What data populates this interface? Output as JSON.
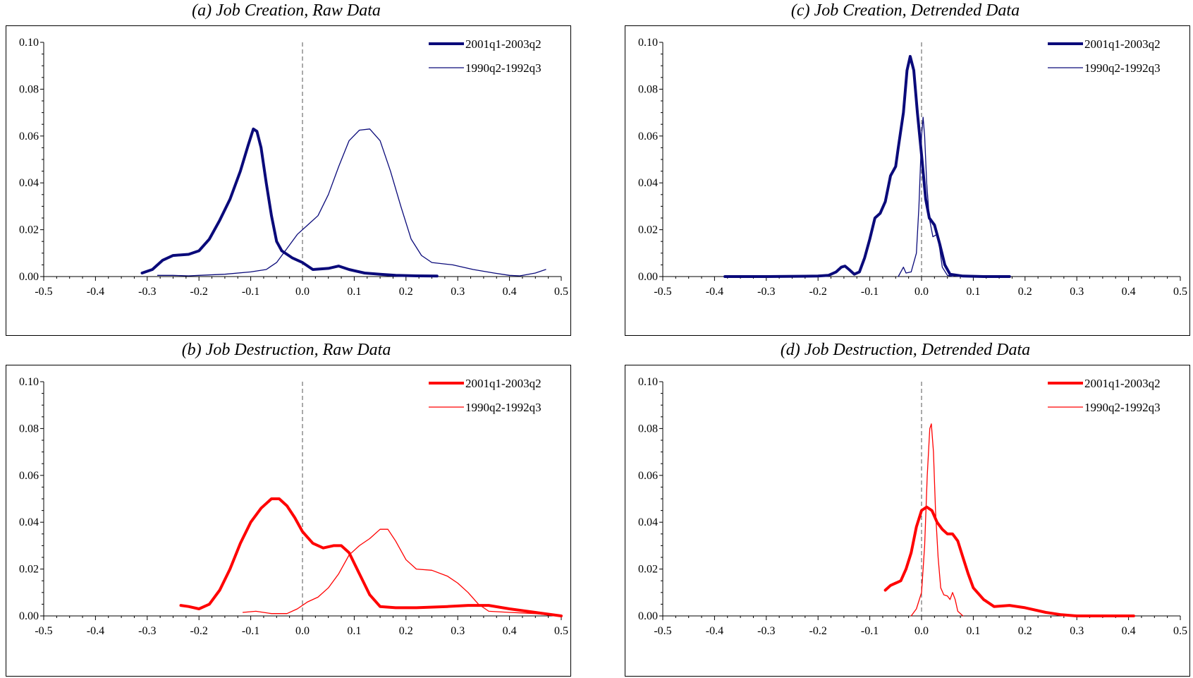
{
  "chart_data": [
    {
      "id": "a",
      "type": "line",
      "title": "(a) Job Creation, Raw Data",
      "xlabel": "",
      "ylabel": "",
      "xlim": [
        -0.5,
        0.5
      ],
      "ylim": [
        0,
        0.1
      ],
      "xticks": [
        "-0.5",
        "-0.4",
        "-0.3",
        "-0.2",
        "-0.1",
        "0.0",
        "0.1",
        "0.2",
        "0.3",
        "0.4",
        "0.5"
      ],
      "yticks": [
        "0.00",
        "0.02",
        "0.04",
        "0.06",
        "0.08",
        "0.10"
      ],
      "legend_position": "top-right",
      "vline_x": 0,
      "color": "#0a0a7a",
      "series": [
        {
          "name": "2001q1-2003q2",
          "width": "thick",
          "points": [
            [
              -0.31,
              0.0015
            ],
            [
              -0.29,
              0.003
            ],
            [
              -0.27,
              0.007
            ],
            [
              -0.25,
              0.009
            ],
            [
              -0.22,
              0.0095
            ],
            [
              -0.2,
              0.011
            ],
            [
              -0.18,
              0.016
            ],
            [
              -0.16,
              0.024
            ],
            [
              -0.14,
              0.033
            ],
            [
              -0.12,
              0.045
            ],
            [
              -0.105,
              0.056
            ],
            [
              -0.095,
              0.063
            ],
            [
              -0.088,
              0.062
            ],
            [
              -0.08,
              0.055
            ],
            [
              -0.07,
              0.04
            ],
            [
              -0.06,
              0.026
            ],
            [
              -0.05,
              0.015
            ],
            [
              -0.04,
              0.011
            ],
            [
              -0.02,
              0.008
            ],
            [
              0,
              0.006
            ],
            [
              0.02,
              0.003
            ],
            [
              0.05,
              0.0035
            ],
            [
              0.07,
              0.0045
            ],
            [
              0.09,
              0.003
            ],
            [
              0.12,
              0.0015
            ],
            [
              0.15,
              0.001
            ],
            [
              0.18,
              0.0005
            ],
            [
              0.22,
              0.0003
            ],
            [
              0.26,
              0.0002
            ]
          ]
        },
        {
          "name": "1990q2-1992q3",
          "width": "thin",
          "points": [
            [
              -0.28,
              0.0005
            ],
            [
              -0.25,
              0.0005
            ],
            [
              -0.22,
              0.0003
            ],
            [
              -0.2,
              0.0005
            ],
            [
              -0.15,
              0.001
            ],
            [
              -0.1,
              0.002
            ],
            [
              -0.07,
              0.003
            ],
            [
              -0.05,
              0.006
            ],
            [
              -0.03,
              0.012
            ],
            [
              -0.01,
              0.018
            ],
            [
              0.01,
              0.022
            ],
            [
              0.03,
              0.026
            ],
            [
              0.05,
              0.035
            ],
            [
              0.07,
              0.047
            ],
            [
              0.09,
              0.058
            ],
            [
              0.11,
              0.0625
            ],
            [
              0.13,
              0.063
            ],
            [
              0.15,
              0.058
            ],
            [
              0.17,
              0.045
            ],
            [
              0.19,
              0.03
            ],
            [
              0.21,
              0.016
            ],
            [
              0.23,
              0.009
            ],
            [
              0.25,
              0.006
            ],
            [
              0.29,
              0.005
            ],
            [
              0.33,
              0.003
            ],
            [
              0.37,
              0.0015
            ],
            [
              0.4,
              0.0005
            ],
            [
              0.42,
              0.0003
            ],
            [
              0.45,
              0.0015
            ],
            [
              0.47,
              0.003
            ]
          ]
        }
      ]
    },
    {
      "id": "c",
      "type": "line",
      "title": "(c) Job Creation, Detrended Data",
      "xlabel": "",
      "ylabel": "",
      "xlim": [
        -0.5,
        0.5
      ],
      "ylim": [
        0,
        0.1
      ],
      "xticks": [
        "-0.5",
        "-0.4",
        "-0.3",
        "-0.2",
        "-0.1",
        "0.0",
        "0.1",
        "0.2",
        "0.3",
        "0.4",
        "0.5"
      ],
      "yticks": [
        "0.00",
        "0.02",
        "0.04",
        "0.06",
        "0.08",
        "0.10"
      ],
      "legend_position": "top-right",
      "vline_x": 0,
      "color": "#0a0a7a",
      "series": [
        {
          "name": "2001q1-2003q2",
          "width": "thick",
          "points": [
            [
              -0.38,
              0
            ],
            [
              -0.3,
              0
            ],
            [
              -0.2,
              0.0002
            ],
            [
              -0.18,
              0.0005
            ],
            [
              -0.165,
              0.002
            ],
            [
              -0.155,
              0.004
            ],
            [
              -0.148,
              0.0045
            ],
            [
              -0.14,
              0.003
            ],
            [
              -0.13,
              0.001
            ],
            [
              -0.12,
              0.002
            ],
            [
              -0.11,
              0.008
            ],
            [
              -0.1,
              0.016
            ],
            [
              -0.09,
              0.025
            ],
            [
              -0.08,
              0.027
            ],
            [
              -0.07,
              0.032
            ],
            [
              -0.06,
              0.043
            ],
            [
              -0.05,
              0.047
            ],
            [
              -0.045,
              0.055
            ],
            [
              -0.035,
              0.07
            ],
            [
              -0.028,
              0.088
            ],
            [
              -0.022,
              0.094
            ],
            [
              -0.015,
              0.088
            ],
            [
              -0.008,
              0.07
            ],
            [
              0,
              0.052
            ],
            [
              0.008,
              0.033
            ],
            [
              0.015,
              0.025
            ],
            [
              0.025,
              0.022
            ],
            [
              0.035,
              0.014
            ],
            [
              0.045,
              0.005
            ],
            [
              0.055,
              0.001
            ],
            [
              0.08,
              0.0002
            ],
            [
              0.12,
              0
            ],
            [
              0.17,
              0
            ]
          ]
        },
        {
          "name": "1990q2-1992q3",
          "width": "thin",
          "points": [
            [
              -0.045,
              0
            ],
            [
              -0.035,
              0.004
            ],
            [
              -0.03,
              0.0015
            ],
            [
              -0.02,
              0.002
            ],
            [
              -0.01,
              0.01
            ],
            [
              -0.005,
              0.03
            ],
            [
              0,
              0.06
            ],
            [
              0.003,
              0.068
            ],
            [
              0.006,
              0.06
            ],
            [
              0.01,
              0.04
            ],
            [
              0.015,
              0.025
            ],
            [
              0.022,
              0.017
            ],
            [
              0.03,
              0.018
            ],
            [
              0.035,
              0.012
            ],
            [
              0.04,
              0.004
            ],
            [
              0.05,
              0.0005
            ],
            [
              0.06,
              0
            ]
          ]
        }
      ]
    },
    {
      "id": "b",
      "type": "line",
      "title": "(b) Job Destruction, Raw Data",
      "xlabel": "",
      "ylabel": "",
      "xlim": [
        -0.5,
        0.5
      ],
      "ylim": [
        0,
        0.1
      ],
      "xticks": [
        "-0.5",
        "-0.4",
        "-0.3",
        "-0.2",
        "-0.1",
        "0.0",
        "0.1",
        "0.2",
        "0.3",
        "0.4",
        "0.5"
      ],
      "yticks": [
        "0.00",
        "0.02",
        "0.04",
        "0.06",
        "0.08",
        "0.10"
      ],
      "legend_position": "top-right",
      "vline_x": 0,
      "color": "#ff0000",
      "series": [
        {
          "name": "2001q1-2003q2",
          "width": "thick",
          "points": [
            [
              -0.235,
              0.0045
            ],
            [
              -0.22,
              0.004
            ],
            [
              -0.2,
              0.003
            ],
            [
              -0.18,
              0.005
            ],
            [
              -0.16,
              0.011
            ],
            [
              -0.14,
              0.02
            ],
            [
              -0.12,
              0.031
            ],
            [
              -0.1,
              0.04
            ],
            [
              -0.08,
              0.046
            ],
            [
              -0.06,
              0.05
            ],
            [
              -0.045,
              0.05
            ],
            [
              -0.03,
              0.047
            ],
            [
              -0.015,
              0.042
            ],
            [
              0,
              0.036
            ],
            [
              0.02,
              0.031
            ],
            [
              0.04,
              0.029
            ],
            [
              0.06,
              0.03
            ],
            [
              0.075,
              0.03
            ],
            [
              0.09,
              0.027
            ],
            [
              0.11,
              0.018
            ],
            [
              0.13,
              0.009
            ],
            [
              0.15,
              0.004
            ],
            [
              0.18,
              0.0035
            ],
            [
              0.22,
              0.0035
            ],
            [
              0.28,
              0.004
            ],
            [
              0.32,
              0.0045
            ],
            [
              0.36,
              0.0045
            ],
            [
              0.4,
              0.003
            ],
            [
              0.45,
              0.0015
            ],
            [
              0.5,
              0
            ]
          ]
        },
        {
          "name": "1990q2-1992q3",
          "width": "thin",
          "points": [
            [
              -0.115,
              0.0015
            ],
            [
              -0.09,
              0.002
            ],
            [
              -0.06,
              0.001
            ],
            [
              -0.03,
              0.001
            ],
            [
              -0.01,
              0.003
            ],
            [
              0.01,
              0.006
            ],
            [
              0.03,
              0.008
            ],
            [
              0.05,
              0.012
            ],
            [
              0.07,
              0.018
            ],
            [
              0.09,
              0.026
            ],
            [
              0.11,
              0.03
            ],
            [
              0.13,
              0.033
            ],
            [
              0.15,
              0.037
            ],
            [
              0.165,
              0.037
            ],
            [
              0.18,
              0.032
            ],
            [
              0.2,
              0.024
            ],
            [
              0.22,
              0.02
            ],
            [
              0.25,
              0.0195
            ],
            [
              0.28,
              0.017
            ],
            [
              0.3,
              0.014
            ],
            [
              0.32,
              0.01
            ],
            [
              0.34,
              0.005
            ],
            [
              0.36,
              0.002
            ],
            [
              0.4,
              0.0015
            ],
            [
              0.45,
              0.001
            ],
            [
              0.48,
              0.0003
            ]
          ]
        }
      ]
    },
    {
      "id": "d",
      "type": "line",
      "title": "(d) Job Destruction, Detrended Data",
      "xlabel": "",
      "ylabel": "",
      "xlim": [
        -0.5,
        0.5
      ],
      "ylim": [
        0,
        0.1
      ],
      "xticks": [
        "-0.5",
        "-0.4",
        "-0.3",
        "-0.2",
        "-0.1",
        "0.0",
        "0.1",
        "0.2",
        "0.3",
        "0.4",
        "0.5"
      ],
      "yticks": [
        "0.00",
        "0.02",
        "0.04",
        "0.06",
        "0.08",
        "0.10"
      ],
      "legend_position": "top-right",
      "vline_x": 0,
      "color": "#ff0000",
      "series": [
        {
          "name": "2001q1-2003q2",
          "width": "thick",
          "points": [
            [
              -0.07,
              0.011
            ],
            [
              -0.06,
              0.013
            ],
            [
              -0.05,
              0.014
            ],
            [
              -0.04,
              0.015
            ],
            [
              -0.03,
              0.02
            ],
            [
              -0.02,
              0.027
            ],
            [
              -0.01,
              0.038
            ],
            [
              0,
              0.045
            ],
            [
              0.01,
              0.0465
            ],
            [
              0.02,
              0.045
            ],
            [
              0.03,
              0.04
            ],
            [
              0.04,
              0.037
            ],
            [
              0.05,
              0.035
            ],
            [
              0.06,
              0.035
            ],
            [
              0.07,
              0.032
            ],
            [
              0.08,
              0.025
            ],
            [
              0.09,
              0.018
            ],
            [
              0.1,
              0.012
            ],
            [
              0.12,
              0.007
            ],
            [
              0.14,
              0.004
            ],
            [
              0.17,
              0.0045
            ],
            [
              0.2,
              0.0035
            ],
            [
              0.24,
              0.0015
            ],
            [
              0.27,
              0.0005
            ],
            [
              0.3,
              0
            ],
            [
              0.41,
              0
            ]
          ]
        },
        {
          "name": "1990q2-1992q3",
          "width": "thin",
          "points": [
            [
              -0.02,
              0
            ],
            [
              -0.01,
              0.003
            ],
            [
              0,
              0.01
            ],
            [
              0.006,
              0.03
            ],
            [
              0.011,
              0.06
            ],
            [
              0.016,
              0.08
            ],
            [
              0.019,
              0.082
            ],
            [
              0.023,
              0.07
            ],
            [
              0.027,
              0.045
            ],
            [
              0.032,
              0.025
            ],
            [
              0.037,
              0.012
            ],
            [
              0.043,
              0.009
            ],
            [
              0.05,
              0.0085
            ],
            [
              0.055,
              0.007
            ],
            [
              0.06,
              0.01
            ],
            [
              0.065,
              0.007
            ],
            [
              0.07,
              0.002
            ],
            [
              0.08,
              0
            ]
          ]
        }
      ]
    }
  ]
}
